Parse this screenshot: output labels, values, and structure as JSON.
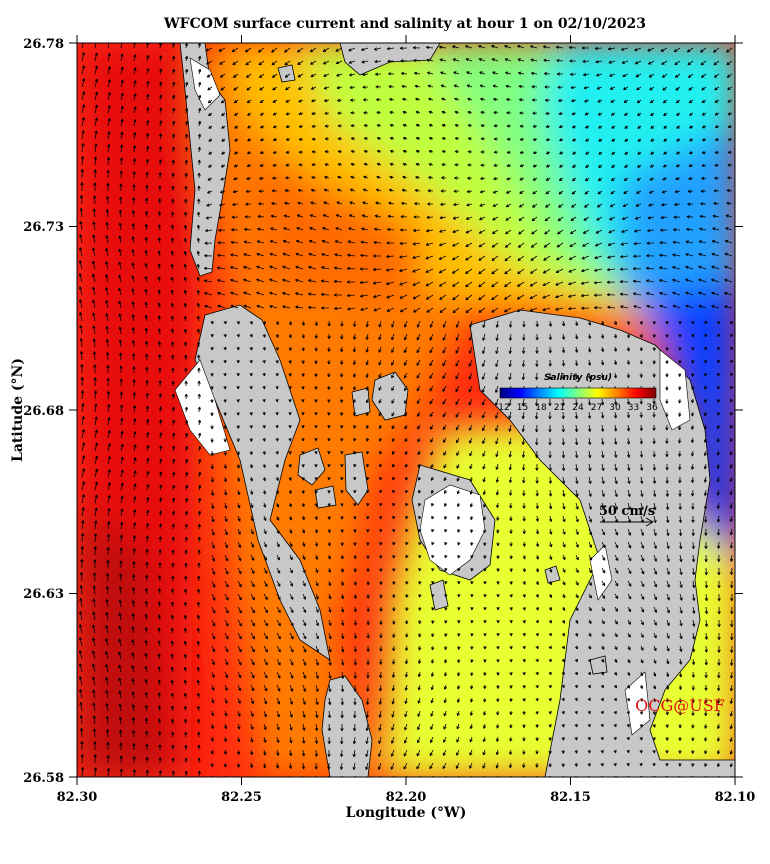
{
  "title": "WFCOM surface current and salinity at hour 1 on 02/10/2023",
  "x_axis": {
    "label": "Longitude (°W)",
    "ticks": [
      "82.30",
      "82.25",
      "82.20",
      "82.15",
      "82.10"
    ],
    "values": [
      82.3,
      82.25,
      82.2,
      82.15,
      82.1
    ]
  },
  "y_axis": {
    "label": "Latitude (°N)",
    "ticks": [
      "26.78",
      "26.73",
      "26.68",
      "26.63",
      "26.58"
    ],
    "values": [
      26.78,
      26.73,
      26.68,
      26.63,
      26.58
    ]
  },
  "colorbar": {
    "title": "Salinity (psu)",
    "ticks": [
      "12",
      "15",
      "18",
      "21",
      "24",
      "27",
      "30",
      "33",
      "36"
    ],
    "range": [
      12,
      36
    ]
  },
  "scale_arrow": {
    "label": "50 cm/s",
    "speed_cm_s": 50
  },
  "credit": "OCG@USF",
  "colors": {
    "land": "#c8c8c8",
    "dry_area": "#ffffff",
    "credit": "#e01010",
    "arrow": "#000000"
  }
}
